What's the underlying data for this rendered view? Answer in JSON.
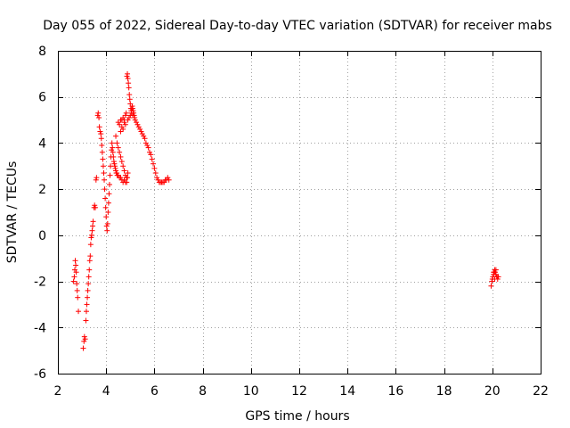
{
  "chart_data": {
    "type": "scatter",
    "title": "Day 055 of 2022, Sidereal Day-to-day VTEC variation (SDTVAR) for receiver mabs",
    "xlabel": "GPS time / hours",
    "ylabel": "SDTVAR / TECUs",
    "xlim": [
      2,
      22
    ],
    "ylim": [
      -6,
      8
    ],
    "xticks": [
      "2",
      "4",
      "6",
      "8",
      "10",
      "12",
      "14",
      "16",
      "18",
      "20",
      "22"
    ],
    "yticks": [
      "-6",
      "-4",
      "-2",
      "0",
      "2",
      "4",
      "6",
      "8"
    ],
    "grid": true,
    "marker": "+",
    "series": [
      {
        "name": "SDTVAR",
        "color": "#ff0000",
        "points": [
          [
            2.65,
            -2.0
          ],
          [
            2.68,
            -1.8
          ],
          [
            2.7,
            -1.5
          ],
          [
            2.72,
            -1.1
          ],
          [
            2.74,
            -1.3
          ],
          [
            2.76,
            -1.6
          ],
          [
            2.78,
            -2.1
          ],
          [
            2.8,
            -2.4
          ],
          [
            2.82,
            -2.7
          ],
          [
            2.85,
            -3.3
          ],
          [
            3.05,
            -4.9
          ],
          [
            3.08,
            -4.6
          ],
          [
            3.1,
            -4.4
          ],
          [
            3.13,
            -4.5
          ],
          [
            3.16,
            -3.7
          ],
          [
            3.18,
            -3.3
          ],
          [
            3.2,
            -3.0
          ],
          [
            3.22,
            -2.7
          ],
          [
            3.24,
            -2.4
          ],
          [
            3.26,
            -2.1
          ],
          [
            3.28,
            -1.8
          ],
          [
            3.3,
            -1.5
          ],
          [
            3.32,
            -1.1
          ],
          [
            3.34,
            -0.9
          ],
          [
            3.36,
            -0.4
          ],
          [
            3.38,
            -0.1
          ],
          [
            3.4,
            0.0
          ],
          [
            3.42,
            0.2
          ],
          [
            3.44,
            0.4
          ],
          [
            3.46,
            0.6
          ],
          [
            3.5,
            1.2
          ],
          [
            3.52,
            1.3
          ],
          [
            3.55,
            1.2
          ],
          [
            3.58,
            2.4
          ],
          [
            3.6,
            2.5
          ],
          [
            3.65,
            5.2
          ],
          [
            3.67,
            5.3
          ],
          [
            3.7,
            5.1
          ],
          [
            3.72,
            4.7
          ],
          [
            3.75,
            4.5
          ],
          [
            3.78,
            4.4
          ],
          [
            3.8,
            4.2
          ],
          [
            3.82,
            3.9
          ],
          [
            3.84,
            3.6
          ],
          [
            3.86,
            3.3
          ],
          [
            3.88,
            3.0
          ],
          [
            3.9,
            2.7
          ],
          [
            3.92,
            2.4
          ],
          [
            3.94,
            2.0
          ],
          [
            3.96,
            1.6
          ],
          [
            3.98,
            1.2
          ],
          [
            4.0,
            0.8
          ],
          [
            4.02,
            0.4
          ],
          [
            4.04,
            0.2
          ],
          [
            4.06,
            0.5
          ],
          [
            4.08,
            1.0
          ],
          [
            4.1,
            1.4
          ],
          [
            4.12,
            1.8
          ],
          [
            4.14,
            2.2
          ],
          [
            4.16,
            2.6
          ],
          [
            4.18,
            3.0
          ],
          [
            4.2,
            3.4
          ],
          [
            4.22,
            3.7
          ],
          [
            4.24,
            4.0
          ],
          [
            4.26,
            3.8
          ],
          [
            4.28,
            3.6
          ],
          [
            4.3,
            3.4
          ],
          [
            4.32,
            3.2
          ],
          [
            4.34,
            3.1
          ],
          [
            4.36,
            3.0
          ],
          [
            4.38,
            2.9
          ],
          [
            4.4,
            2.8
          ],
          [
            4.42,
            2.7
          ],
          [
            4.44,
            2.7
          ],
          [
            4.46,
            2.6
          ],
          [
            4.5,
            2.6
          ],
          [
            4.55,
            2.5
          ],
          [
            4.6,
            2.5
          ],
          [
            4.65,
            2.4
          ],
          [
            4.7,
            2.3
          ],
          [
            4.75,
            2.4
          ],
          [
            4.8,
            2.3
          ],
          [
            4.85,
            2.3
          ],
          [
            4.88,
            2.5
          ],
          [
            4.9,
            2.7
          ],
          [
            4.5,
            4.9
          ],
          [
            4.55,
            4.8
          ],
          [
            4.6,
            5.0
          ],
          [
            4.65,
            5.0
          ],
          [
            4.7,
            5.1
          ],
          [
            4.75,
            5.0
          ],
          [
            4.8,
            5.2
          ],
          [
            4.83,
            5.3
          ],
          [
            4.86,
            6.9
          ],
          [
            4.88,
            7.0
          ],
          [
            4.9,
            6.8
          ],
          [
            4.92,
            6.6
          ],
          [
            4.94,
            6.4
          ],
          [
            4.96,
            6.1
          ],
          [
            4.98,
            5.9
          ],
          [
            5.0,
            5.7
          ],
          [
            5.02,
            5.5
          ],
          [
            5.04,
            5.4
          ],
          [
            5.06,
            5.5
          ],
          [
            5.08,
            5.6
          ],
          [
            5.1,
            5.5
          ],
          [
            5.12,
            5.4
          ],
          [
            5.14,
            5.3
          ],
          [
            5.16,
            5.2
          ],
          [
            5.18,
            5.1
          ],
          [
            5.2,
            5.0
          ],
          [
            5.25,
            4.9
          ],
          [
            5.3,
            4.8
          ],
          [
            5.35,
            4.7
          ],
          [
            5.4,
            4.6
          ],
          [
            5.45,
            4.5
          ],
          [
            5.5,
            4.4
          ],
          [
            5.55,
            4.3
          ],
          [
            5.6,
            4.2
          ],
          [
            5.65,
            4.0
          ],
          [
            5.7,
            3.9
          ],
          [
            5.75,
            3.8
          ],
          [
            5.8,
            3.6
          ],
          [
            5.85,
            3.5
          ],
          [
            5.9,
            3.3
          ],
          [
            5.95,
            3.1
          ],
          [
            6.0,
            2.9
          ],
          [
            6.05,
            2.7
          ],
          [
            6.1,
            2.5
          ],
          [
            6.15,
            2.4
          ],
          [
            6.2,
            2.3
          ],
          [
            6.25,
            2.3
          ],
          [
            6.3,
            2.3
          ],
          [
            6.35,
            2.3
          ],
          [
            6.4,
            2.3
          ],
          [
            6.45,
            2.4
          ],
          [
            6.5,
            2.4
          ],
          [
            6.55,
            2.5
          ],
          [
            6.6,
            2.4
          ],
          [
            4.4,
            4.3
          ],
          [
            4.45,
            4.0
          ],
          [
            4.5,
            3.8
          ],
          [
            4.55,
            3.6
          ],
          [
            4.6,
            3.4
          ],
          [
            4.65,
            3.2
          ],
          [
            4.7,
            3.0
          ],
          [
            4.75,
            2.8
          ],
          [
            4.8,
            2.6
          ],
          [
            4.85,
            2.5
          ],
          [
            4.6,
            4.5
          ],
          [
            4.65,
            4.7
          ],
          [
            4.7,
            4.6
          ],
          [
            4.75,
            4.9
          ],
          [
            4.8,
            4.8
          ],
          [
            4.9,
            5.0
          ],
          [
            4.95,
            5.1
          ],
          [
            5.0,
            5.2
          ],
          [
            5.05,
            5.3
          ],
          [
            5.1,
            5.2
          ],
          [
            19.95,
            -2.2
          ],
          [
            19.98,
            -2.0
          ],
          [
            20.0,
            -1.9
          ],
          [
            20.02,
            -1.8
          ],
          [
            20.05,
            -1.7
          ],
          [
            20.08,
            -1.6
          ],
          [
            20.1,
            -1.5
          ],
          [
            20.12,
            -1.6
          ],
          [
            20.15,
            -1.7
          ],
          [
            20.18,
            -1.8
          ],
          [
            20.2,
            -1.8
          ],
          [
            20.22,
            -1.9
          ],
          [
            20.25,
            -1.8
          ],
          [
            20.1,
            -1.9
          ],
          [
            20.05,
            -1.6
          ],
          [
            20.15,
            -1.5
          ]
        ]
      }
    ]
  }
}
